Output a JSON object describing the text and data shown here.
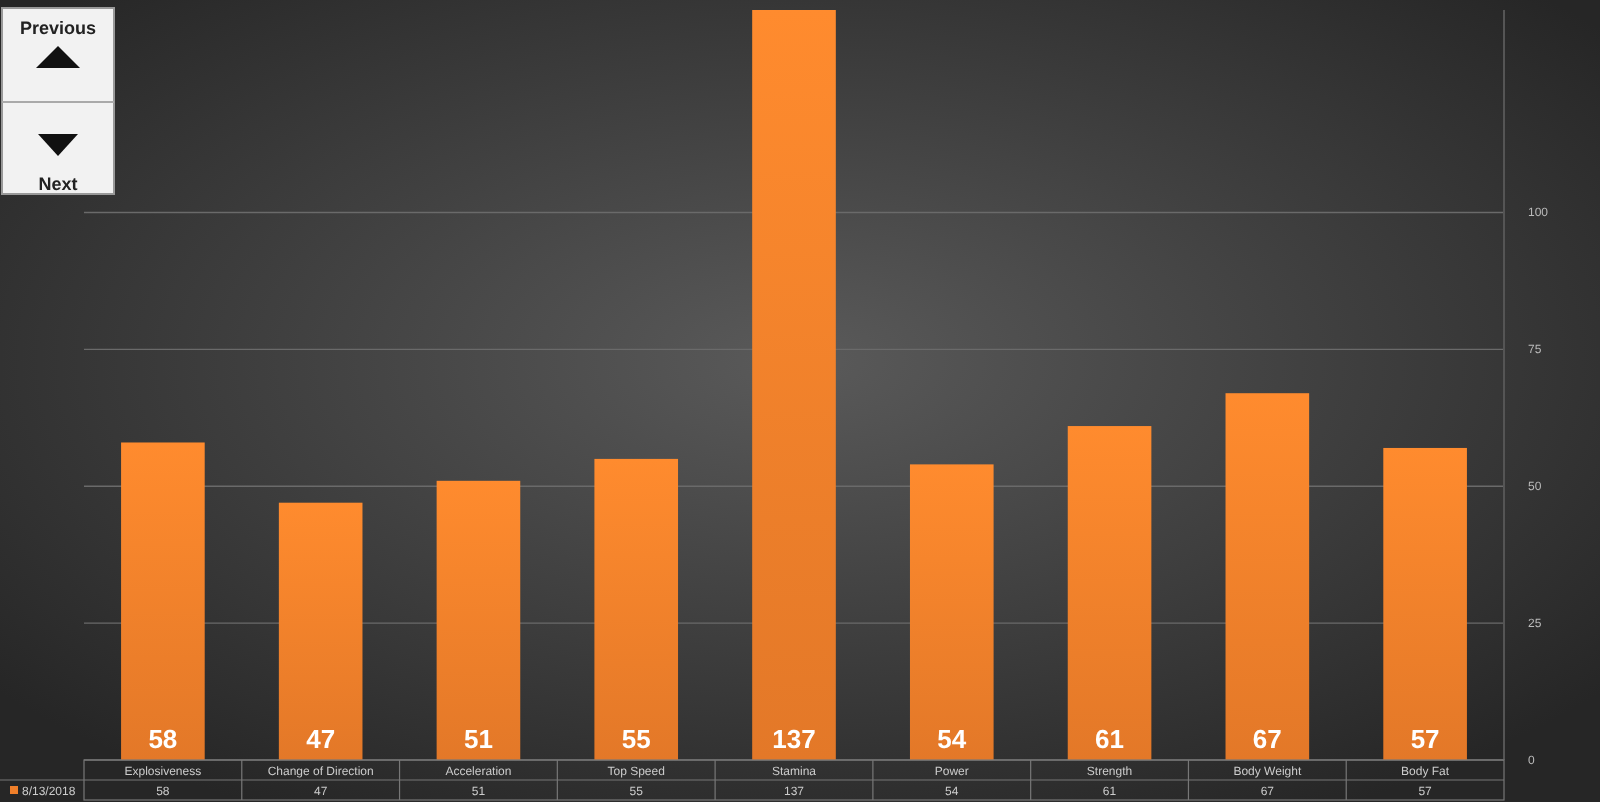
{
  "chart_data": {
    "type": "bar",
    "categories": [
      "Explosiveness",
      "Change of Direction",
      "Acceleration",
      "Top Speed",
      "Stamina",
      "Power",
      "Strength",
      "Body Weight",
      "Body Fat"
    ],
    "series": [
      {
        "name": "8/13/2018",
        "color": "#f07f2a",
        "values": [
          58,
          47,
          51,
          55,
          137,
          54,
          61,
          67,
          57
        ],
        "value_labels": [
          "58",
          "47",
          "51",
          "55",
          "137",
          "54",
          "61",
          "67",
          "57"
        ]
      }
    ],
    "ylim": [
      0,
      137
    ],
    "yticks": [
      0,
      25,
      50,
      75,
      100
    ],
    "grid": "y",
    "data_labels": true,
    "legend": "bottom left",
    "annotations": [
      "Previous",
      "Next",
      "58",
      "47",
      "51",
      "55",
      "137",
      "54",
      "61",
      "67",
      "57"
    ]
  }
}
